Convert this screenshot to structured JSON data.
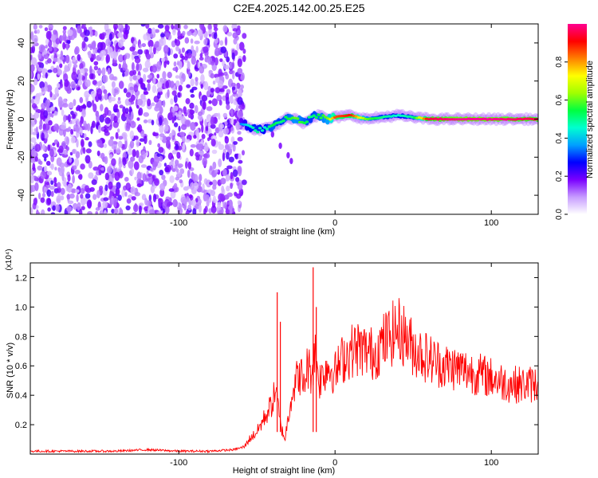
{
  "figure": {
    "title": "C2E4.2025.142.00.25.E25"
  },
  "chart_data": [
    {
      "type": "heatmap",
      "title": "C2E4.2025.142.00.25.E25",
      "xlabel": "Height of straight line (km)",
      "ylabel": "Frequency (Hz)",
      "xlim": [
        -195,
        130
      ],
      "ylim": [
        -50,
        50
      ],
      "x_ticks": [
        -100,
        0,
        100
      ],
      "x_tick_labels": [
        "-100",
        "0",
        "100"
      ],
      "y_ticks": [
        -40,
        -20,
        0,
        20,
        40
      ],
      "y_tick_labels": [
        "-40",
        "-20",
        "0",
        "20",
        "40"
      ],
      "colorbar": {
        "label": "Normalized spectral amplitude",
        "range": [
          0,
          1
        ],
        "ticks": [
          0.0,
          0.2,
          0.4,
          0.6,
          0.8
        ],
        "tick_labels": [
          "0.0",
          "0.2",
          "0.4",
          "0.6",
          "0.8"
        ],
        "colors": [
          "#ffffff",
          "#c79cff",
          "#7a00ff",
          "#0000ff",
          "#00a0ff",
          "#00ffd0",
          "#00ff40",
          "#a0ff00",
          "#ffff00",
          "#ff8000",
          "#ff0000",
          "#ff0090"
        ]
      },
      "noise_region_x": [
        -195,
        -60
      ],
      "ridge": {
        "x": [
          -60,
          -55,
          -50,
          -45,
          -40,
          -35,
          -30,
          -25,
          -20,
          -15,
          -10,
          -5,
          0,
          10,
          20,
          30,
          40,
          50,
          60,
          80,
          100,
          130
        ],
        "frequency": [
          -2,
          -4,
          -6,
          -5,
          -4,
          -2,
          1,
          0,
          -2,
          1,
          2,
          0,
          1,
          2,
          0,
          1,
          2,
          1,
          0,
          0,
          0,
          0
        ],
        "amplitude": [
          0.35,
          0.45,
          0.5,
          0.45,
          0.55,
          0.5,
          0.55,
          0.6,
          0.55,
          0.5,
          0.55,
          0.6,
          0.85,
          0.9,
          0.6,
          0.5,
          0.45,
          0.5,
          0.95,
          1.0,
          1.0,
          0.95
        ]
      },
      "branch": {
        "x": [
          -40,
          -35,
          -30,
          -28
        ],
        "frequency": [
          -8,
          -14,
          -19,
          -22
        ]
      }
    },
    {
      "type": "line",
      "xlabel": "Height of straight line (km)",
      "ylabel": "SNR (10 * v/v)",
      "y_multiplier": "(x10⁴)",
      "xlim": [
        -195,
        130
      ],
      "ylim": [
        0,
        1.3
      ],
      "x_ticks": [
        -100,
        0,
        100
      ],
      "x_tick_labels": [
        "-100",
        "0",
        "100"
      ],
      "y_ticks": [
        0.2,
        0.4,
        0.6,
        0.8,
        1.0,
        1.2
      ],
      "y_tick_labels": [
        "0.2",
        "0.4",
        "0.6",
        "0.8",
        "1.0",
        "1.2"
      ],
      "color": "#ff0000",
      "series": [
        {
          "x": [
            -195,
            -180,
            -160,
            -140,
            -120,
            -100,
            -80,
            -65,
            -58,
            -55,
            -50,
            -45,
            -40,
            -38,
            -35,
            -32,
            -30,
            -28,
            -25,
            -22,
            -20,
            -18,
            -15,
            -13,
            -10,
            -5,
            0,
            5,
            10,
            15,
            20,
            25,
            30,
            35,
            40,
            45,
            50,
            60,
            70,
            80,
            90,
            100,
            110,
            120,
            130
          ],
          "y": [
            0.02,
            0.02,
            0.02,
            0.02,
            0.03,
            0.02,
            0.02,
            0.03,
            0.05,
            0.1,
            0.15,
            0.25,
            0.35,
            0.45,
            0.2,
            0.1,
            0.25,
            0.4,
            0.5,
            0.55,
            0.45,
            0.6,
            0.55,
            0.7,
            0.5,
            0.6,
            0.55,
            0.65,
            0.7,
            0.72,
            0.7,
            0.68,
            0.75,
            0.8,
            0.85,
            0.8,
            0.72,
            0.65,
            0.6,
            0.58,
            0.55,
            0.52,
            0.48,
            0.47,
            0.48
          ]
        }
      ],
      "spikes": [
        {
          "x": -37,
          "y": 1.1
        },
        {
          "x": -35,
          "y": 0.9
        },
        {
          "x": -14,
          "y": 1.27
        },
        {
          "x": -12,
          "y": 1.0
        }
      ]
    }
  ]
}
